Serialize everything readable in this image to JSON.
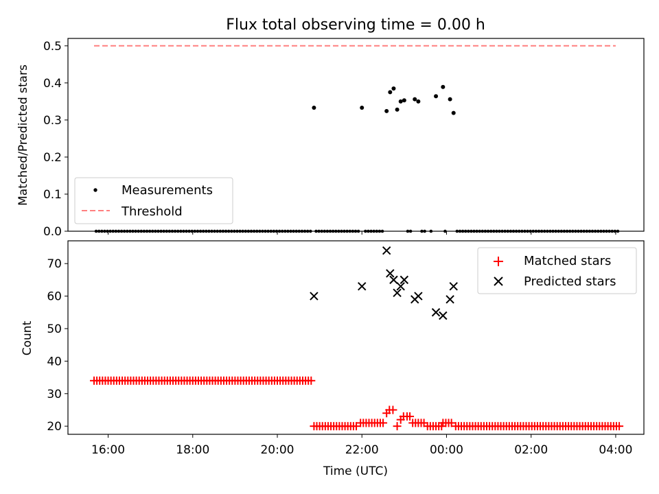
{
  "chart_data": [
    {
      "type": "scatter",
      "title": "Flux total observing time = 0.00 h",
      "xlabel": "",
      "ylabel": "Matched/Predicted stars",
      "xlim": [
        "15:03",
        "04:40"
      ],
      "ylim": [
        0,
        0.52
      ],
      "yticks": [
        0.0,
        0.1,
        0.2,
        0.3,
        0.4,
        0.5
      ],
      "ytick_labels": [
        "0.0",
        "0.1",
        "0.2",
        "0.3",
        "0.4",
        "0.5"
      ],
      "legend_position": "lower-left",
      "threshold": {
        "name": "Threshold",
        "value": 0.5,
        "x": [
          "15:40",
          "04:00"
        ],
        "color": "#ff7f7f",
        "style": "dashed"
      },
      "series": [
        {
          "name": "Measurements",
          "color": "#000000",
          "marker": "dot",
          "points": [
            [
              "20:52",
              0.333
            ],
            [
              "22:00",
              0.333
            ],
            [
              "22:35",
              0.324
            ],
            [
              "22:40",
              0.375
            ],
            [
              "22:45",
              0.385
            ],
            [
              "22:50",
              0.328
            ],
            [
              "22:55",
              0.35
            ],
            [
              "23:00",
              0.353
            ],
            [
              "23:15",
              0.356
            ],
            [
              "23:20",
              0.35
            ],
            [
              "23:45",
              0.364
            ],
            [
              "23:55",
              0.389
            ],
            [
              "00:05",
              0.356
            ],
            [
              "00:10",
              0.319
            ]
          ],
          "zero_runs": [
            {
              "start": "15:43",
              "end": "20:48",
              "step_min": 4
            },
            {
              "start": "20:55",
              "end": "21:55",
              "step_min": 4
            },
            {
              "start": "22:05",
              "end": "22:30",
              "step_min": 4
            },
            {
              "start": "23:05",
              "end": "23:10",
              "step_min": 4
            },
            {
              "start": "23:25",
              "end": "23:30",
              "step_min": 4
            },
            {
              "start": "23:38",
              "end": "23:40",
              "step_min": 4
            },
            {
              "start": "23:58",
              "end": "00:00",
              "step_min": 4
            },
            {
              "start": "00:15",
              "end": "04:05",
              "step_min": 4
            }
          ]
        }
      ]
    },
    {
      "type": "scatter",
      "title": "",
      "xlabel": "Time (UTC)",
      "ylabel": "Count",
      "xlim": [
        "15:03",
        "04:40"
      ],
      "ylim": [
        17.5,
        77
      ],
      "yticks": [
        20,
        30,
        40,
        50,
        60,
        70
      ],
      "ytick_labels": [
        "20",
        "30",
        "40",
        "50",
        "60",
        "70"
      ],
      "xticks": [
        "16:00",
        "18:00",
        "20:00",
        "22:00",
        "00:00",
        "02:00",
        "04:00"
      ],
      "xtick_labels": [
        "16:00",
        "18:00",
        "20:00",
        "22:00",
        "00:00",
        "02:00",
        "04:00"
      ],
      "legend_position": "top-right",
      "series": [
        {
          "name": "Matched stars",
          "color": "#ff0000",
          "marker": "plus",
          "runs": [
            {
              "start": "15:40",
              "end": "20:50",
              "step_min": 4,
              "value": 34
            },
            {
              "start": "20:52",
              "end": "21:55",
              "step_min": 4,
              "value": 20
            },
            {
              "start": "21:58",
              "end": "22:30",
              "step_min": 4,
              "value": 21
            },
            {
              "start": "23:12",
              "end": "23:30",
              "step_min": 4,
              "value": 21
            },
            {
              "start": "23:33",
              "end": "23:55",
              "step_min": 4,
              "value": 20
            },
            {
              "start": "23:55",
              "end": "00:10",
              "step_min": 4,
              "value": 21
            },
            {
              "start": "00:13",
              "end": "04:07",
              "step_min": 4,
              "value": 20
            }
          ],
          "points": [
            [
              "22:35",
              24
            ],
            [
              "22:39",
              25
            ],
            [
              "22:44",
              25
            ],
            [
              "22:50",
              20
            ],
            [
              "22:55",
              22
            ],
            [
              "22:59",
              23
            ],
            [
              "23:04",
              23
            ],
            [
              "23:08",
              23
            ]
          ]
        },
        {
          "name": "Predicted stars",
          "color": "#000000",
          "marker": "x",
          "points": [
            [
              "20:52",
              60
            ],
            [
              "22:00",
              63
            ],
            [
              "22:35",
              74
            ],
            [
              "22:40",
              67
            ],
            [
              "22:45",
              65
            ],
            [
              "22:50",
              61
            ],
            [
              "22:55",
              63
            ],
            [
              "23:00",
              65
            ],
            [
              "23:15",
              59
            ],
            [
              "23:20",
              60
            ],
            [
              "23:45",
              55
            ],
            [
              "23:55",
              54
            ],
            [
              "00:05",
              59
            ],
            [
              "00:10",
              63
            ]
          ]
        }
      ]
    }
  ]
}
